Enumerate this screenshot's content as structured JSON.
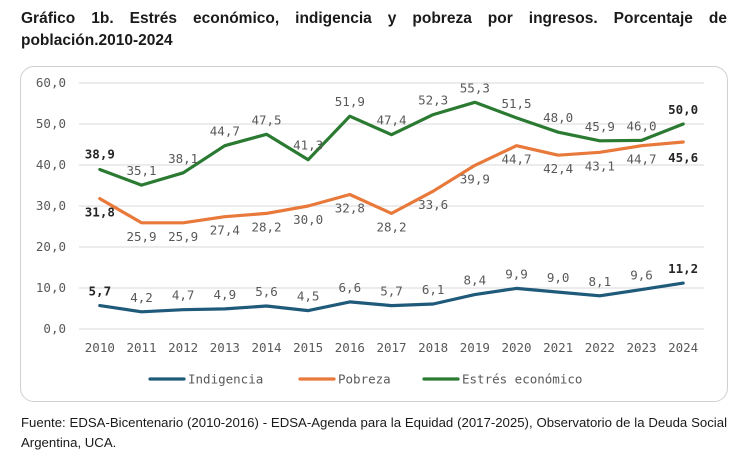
{
  "title": "Gráfico 1b. Estrés económico, indigencia y pobreza por ingresos. Porcentaje de población.2010-2024",
  "source": "Fuente: EDSA-Bicentenario (2010-2016) - EDSA-Agenda para la Equidad (2017-2025), Observatorio de la Deuda Social Argentina, UCA.",
  "chart_data": {
    "type": "line",
    "x": [
      "2010",
      "2011",
      "2012",
      "2013",
      "2014",
      "2015",
      "2016",
      "2017",
      "2018",
      "2019",
      "2020",
      "2021",
      "2022",
      "2023",
      "2024"
    ],
    "ylim": [
      0,
      60
    ],
    "yticks": [
      "0,0",
      "10,0",
      "20,0",
      "30,0",
      "40,0",
      "50,0",
      "60,0"
    ],
    "grid": true,
    "legend_position": "bottom",
    "series": [
      {
        "name": "Indigencia",
        "color": "#1f5a7a",
        "values": [
          5.7,
          4.2,
          4.7,
          4.9,
          5.6,
          4.5,
          6.6,
          5.7,
          6.1,
          8.4,
          9.9,
          9.0,
          8.1,
          9.6,
          11.2
        ],
        "labels": [
          "5,7",
          "4,2",
          "4,7",
          "4,9",
          "5,6",
          "4,5",
          "6,6",
          "5,7",
          "6,1",
          "8,4",
          "9,9",
          "9,0",
          "8,1",
          "9,6",
          "11,2"
        ]
      },
      {
        "name": "Pobreza",
        "color": "#e8793b",
        "values": [
          31.8,
          25.9,
          25.9,
          27.4,
          28.2,
          30.0,
          32.8,
          28.2,
          33.6,
          39.9,
          44.7,
          42.4,
          43.1,
          44.7,
          45.6
        ],
        "labels": [
          "31,8",
          "25,9",
          "25,9",
          "27,4",
          "28,2",
          "30,0",
          "32,8",
          "28,2",
          "33,6",
          "39,9",
          "44,7",
          "42,4",
          "43,1",
          "44,7",
          "45,6"
        ]
      },
      {
        "name": "Estrés económico",
        "color": "#2a7a32",
        "values": [
          38.9,
          35.1,
          38.1,
          44.7,
          47.5,
          41.3,
          51.9,
          47.4,
          52.3,
          55.3,
          51.5,
          48.0,
          45.9,
          46.0,
          50.0
        ],
        "labels": [
          "38,9",
          "35,1",
          "38,1",
          "44,7",
          "47,5",
          "41,3",
          "51,9",
          "47,4",
          "52,3",
          "55,3",
          "51,5",
          "48,0",
          "45,9",
          "46,0",
          "50,0"
        ]
      }
    ]
  }
}
